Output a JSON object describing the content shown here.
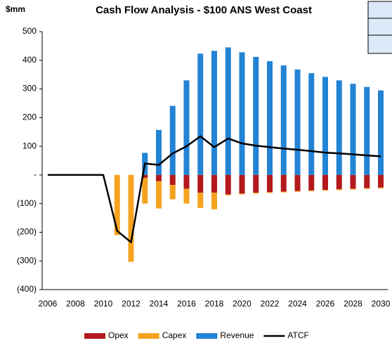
{
  "chart_data": {
    "type": "bar",
    "title": "Cash Flow Analysis - $100 ANS West Coast",
    "y_label": "$mm",
    "categories": [
      "2006",
      null,
      "2008",
      null,
      "2010",
      null,
      "2012",
      null,
      "2014",
      null,
      "2016",
      null,
      "2018",
      null,
      "2020",
      null,
      "2022",
      null,
      "2024",
      null,
      "2026",
      null,
      "2028",
      null,
      "2030"
    ],
    "series": [
      {
        "name": "Opex",
        "color": "#b3191c",
        "stack": "neg",
        "values": [
          0,
          0,
          0,
          0,
          0,
          0,
          0,
          -10,
          -22,
          -35,
          -48,
          -62,
          -62,
          -68,
          -65,
          -62,
          -60,
          -58,
          -56,
          -54,
          -52,
          -50,
          -48,
          -46,
          -44
        ]
      },
      {
        "name": "Capex",
        "color": "#f5a31f",
        "stack": "neg",
        "values": [
          0,
          0,
          0,
          0,
          0,
          -210,
          -303,
          -90,
          -95,
          -50,
          -52,
          -53,
          -58,
          -3,
          -3,
          -3,
          -3,
          -3,
          -3,
          -3,
          -3,
          -3,
          -3,
          -3,
          -3
        ]
      },
      {
        "name": "Revenue",
        "color": "#2383d4",
        "stack": "pos",
        "values": [
          0,
          0,
          0,
          0,
          0,
          0,
          0,
          77,
          157,
          241,
          330,
          423,
          433,
          445,
          428,
          412,
          397,
          382,
          368,
          355,
          342,
          330,
          318,
          307,
          295
        ]
      },
      {
        "name": "ATCF",
        "color": "#000000",
        "kind": "line",
        "values": [
          0,
          0,
          0,
          0,
          0,
          -195,
          -235,
          40,
          35,
          75,
          100,
          135,
          97,
          127,
          110,
          102,
          97,
          92,
          88,
          83,
          78,
          75,
          72,
          68,
          65
        ]
      }
    ],
    "ylim": [
      -400,
      500
    ],
    "yticks": [
      {
        "value": -400,
        "label": "(400)"
      },
      {
        "value": -300,
        "label": "(300)"
      },
      {
        "value": -200,
        "label": "(200)"
      },
      {
        "value": -100,
        "label": "(100)"
      },
      {
        "value": 0,
        "label": "-"
      },
      100,
      200,
      300,
      400,
      500
    ],
    "legend": "bottom"
  }
}
